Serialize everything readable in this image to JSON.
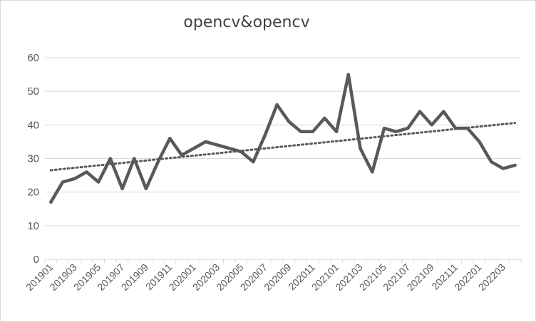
{
  "chart_data": {
    "type": "line",
    "title": "opencv&opencv",
    "xlabel": "",
    "ylabel": "",
    "ylim": [
      0,
      60
    ],
    "yticks": [
      0,
      10,
      20,
      30,
      40,
      50,
      60
    ],
    "grid": true,
    "legend": "none",
    "categories": [
      "201901",
      "201902",
      "201903",
      "201904",
      "201905",
      "201906",
      "201907",
      "201908",
      "201909",
      "201910",
      "201911",
      "201912",
      "202001",
      "202002",
      "202003",
      "202004",
      "202005",
      "202006",
      "202007",
      "202008",
      "202009",
      "202010",
      "202011",
      "202012",
      "202101",
      "202102",
      "202103",
      "202104",
      "202105",
      "202106",
      "202107",
      "202108",
      "202109",
      "202110",
      "202111",
      "202112",
      "202201",
      "202202",
      "202203",
      "202204"
    ],
    "tick_labels": [
      "201901",
      "201903",
      "201905",
      "201907",
      "201909",
      "201911",
      "202001",
      "202003",
      "202005",
      "202007",
      "202009",
      "202011",
      "202101",
      "202103",
      "202105",
      "202107",
      "202109",
      "202111",
      "202201",
      "202203"
    ],
    "series": [
      {
        "values": [
          17,
          23,
          24,
          26,
          23,
          30,
          21,
          30,
          21,
          29,
          36,
          31,
          33,
          35,
          34,
          33,
          32,
          29,
          37,
          46,
          41,
          38,
          38,
          42,
          38,
          55,
          33,
          26,
          39,
          38,
          39,
          44,
          40,
          44,
          39,
          39,
          35,
          29,
          27,
          28
        ],
        "color": "#595959"
      }
    ],
    "trendline": {
      "type": "linear",
      "style": "dotted",
      "color": "#595959"
    }
  }
}
